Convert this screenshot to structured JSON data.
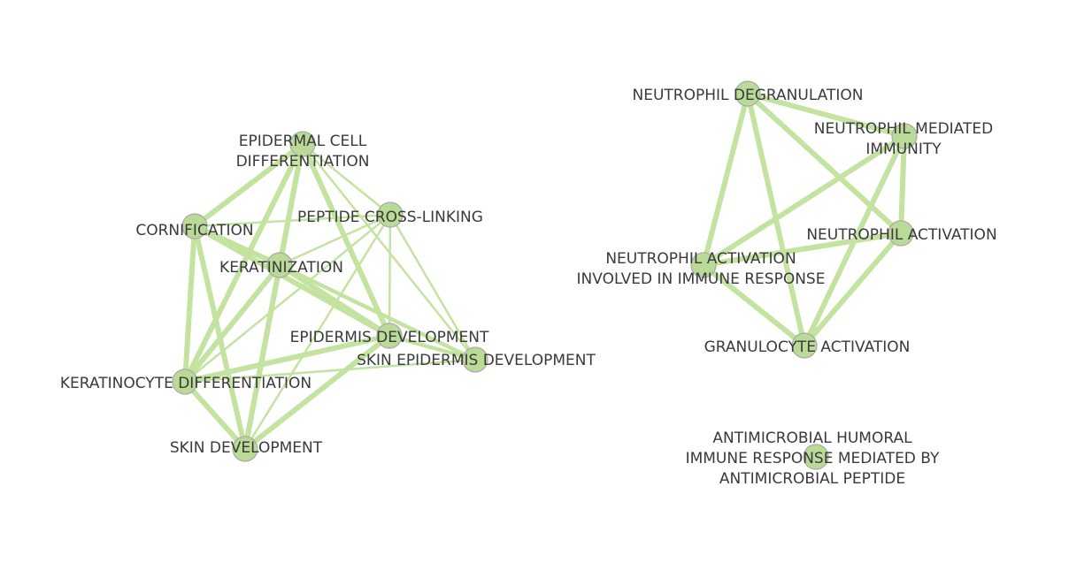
{
  "graph": {
    "colors": {
      "node_fill": "#b9db97",
      "node_stroke": "#a9a9a9",
      "edge": "#c4e3a1",
      "label": "#3a3a3a",
      "background": "#ffffff"
    },
    "nodes": [
      {
        "id": "epidermal-cell-differentiation",
        "label_lines": [
          "EPIDERMAL CELL",
          "DIFFERENTIATION"
        ]
      },
      {
        "id": "cornification",
        "label_lines": [
          "CORNIFICATION"
        ]
      },
      {
        "id": "peptide-cross-linking",
        "label_lines": [
          "PEPTIDE CROSS-LINKING"
        ]
      },
      {
        "id": "keratinization",
        "label_lines": [
          "KERATINIZATION"
        ]
      },
      {
        "id": "epidermis-development",
        "label_lines": [
          "EPIDERMIS DEVELOPMENT"
        ]
      },
      {
        "id": "skin-epidermis-development",
        "label_lines": [
          "SKIN EPIDERMIS DEVELOPMENT"
        ]
      },
      {
        "id": "keratinocyte-differentiation",
        "label_lines": [
          "KERATINOCYTE DIFFERENTIATION"
        ]
      },
      {
        "id": "skin-development",
        "label_lines": [
          "SKIN DEVELOPMENT"
        ]
      },
      {
        "id": "neutrophil-degranulation",
        "label_lines": [
          "NEUTROPHIL DEGRANULATION"
        ]
      },
      {
        "id": "neutrophil-mediated-immunity",
        "label_lines": [
          "NEUTROPHIL MEDIATED",
          "IMMUNITY"
        ]
      },
      {
        "id": "neutrophil-activation",
        "label_lines": [
          "NEUTROPHIL ACTIVATION"
        ]
      },
      {
        "id": "neutrophil-activation-immune-response",
        "label_lines": [
          "NEUTROPHIL ACTIVATION",
          "INVOLVED IN IMMUNE RESPONSE"
        ]
      },
      {
        "id": "granulocyte-activation",
        "label_lines": [
          "GRANULOCYTE ACTIVATION"
        ]
      },
      {
        "id": "antimicrobial-humoral-immune-response",
        "label_lines": [
          "ANTIMICROBIAL HUMORAL",
          "IMMUNE RESPONSE MEDIATED BY",
          "ANTIMICROBIAL PEPTIDE"
        ]
      }
    ],
    "edges": [
      {
        "source": "epidermal-cell-differentiation",
        "target": "cornification",
        "weight": "strong"
      },
      {
        "source": "epidermal-cell-differentiation",
        "target": "keratinization",
        "weight": "strong"
      },
      {
        "source": "epidermal-cell-differentiation",
        "target": "keratinocyte-differentiation",
        "weight": "strong"
      },
      {
        "source": "epidermal-cell-differentiation",
        "target": "skin-development",
        "weight": "strong"
      },
      {
        "source": "epidermal-cell-differentiation",
        "target": "epidermis-development",
        "weight": "strong"
      },
      {
        "source": "epidermal-cell-differentiation",
        "target": "peptide-cross-linking",
        "weight": "light"
      },
      {
        "source": "epidermal-cell-differentiation",
        "target": "skin-epidermis-development",
        "weight": "light"
      },
      {
        "source": "cornification",
        "target": "keratinization",
        "weight": "strong"
      },
      {
        "source": "cornification",
        "target": "keratinocyte-differentiation",
        "weight": "strong"
      },
      {
        "source": "cornification",
        "target": "skin-development",
        "weight": "strong"
      },
      {
        "source": "cornification",
        "target": "epidermis-development",
        "weight": "strong"
      },
      {
        "source": "cornification",
        "target": "peptide-cross-linking",
        "weight": "light"
      },
      {
        "source": "keratinization",
        "target": "keratinocyte-differentiation",
        "weight": "strong"
      },
      {
        "source": "keratinization",
        "target": "skin-development",
        "weight": "strong"
      },
      {
        "source": "keratinization",
        "target": "epidermis-development",
        "weight": "strong"
      },
      {
        "source": "keratinization",
        "target": "peptide-cross-linking",
        "weight": "light"
      },
      {
        "source": "keratinization",
        "target": "skin-epidermis-development",
        "weight": "medium"
      },
      {
        "source": "peptide-cross-linking",
        "target": "keratinocyte-differentiation",
        "weight": "light"
      },
      {
        "source": "peptide-cross-linking",
        "target": "skin-development",
        "weight": "light"
      },
      {
        "source": "peptide-cross-linking",
        "target": "epidermis-development",
        "weight": "light"
      },
      {
        "source": "peptide-cross-linking",
        "target": "skin-epidermis-development",
        "weight": "light"
      },
      {
        "source": "epidermis-development",
        "target": "keratinocyte-differentiation",
        "weight": "strong"
      },
      {
        "source": "epidermis-development",
        "target": "skin-development",
        "weight": "strong"
      },
      {
        "source": "epidermis-development",
        "target": "skin-epidermis-development",
        "weight": "medium"
      },
      {
        "source": "keratinocyte-differentiation",
        "target": "skin-development",
        "weight": "strong"
      },
      {
        "source": "keratinocyte-differentiation",
        "target": "skin-epidermis-development",
        "weight": "light"
      },
      {
        "source": "neutrophil-degranulation",
        "target": "neutrophil-mediated-immunity",
        "weight": "strong"
      },
      {
        "source": "neutrophil-degranulation",
        "target": "neutrophil-activation",
        "weight": "strong"
      },
      {
        "source": "neutrophil-degranulation",
        "target": "neutrophil-activation-immune-response",
        "weight": "strong"
      },
      {
        "source": "neutrophil-degranulation",
        "target": "granulocyte-activation",
        "weight": "strong"
      },
      {
        "source": "neutrophil-mediated-immunity",
        "target": "neutrophil-activation",
        "weight": "strong"
      },
      {
        "source": "neutrophil-mediated-immunity",
        "target": "neutrophil-activation-immune-response",
        "weight": "strong"
      },
      {
        "source": "neutrophil-mediated-immunity",
        "target": "granulocyte-activation",
        "weight": "strong"
      },
      {
        "source": "neutrophil-activation",
        "target": "neutrophil-activation-immune-response",
        "weight": "strong"
      },
      {
        "source": "neutrophil-activation",
        "target": "granulocyte-activation",
        "weight": "strong"
      },
      {
        "source": "neutrophil-activation-immune-response",
        "target": "granulocyte-activation",
        "weight": "strong"
      }
    ]
  }
}
